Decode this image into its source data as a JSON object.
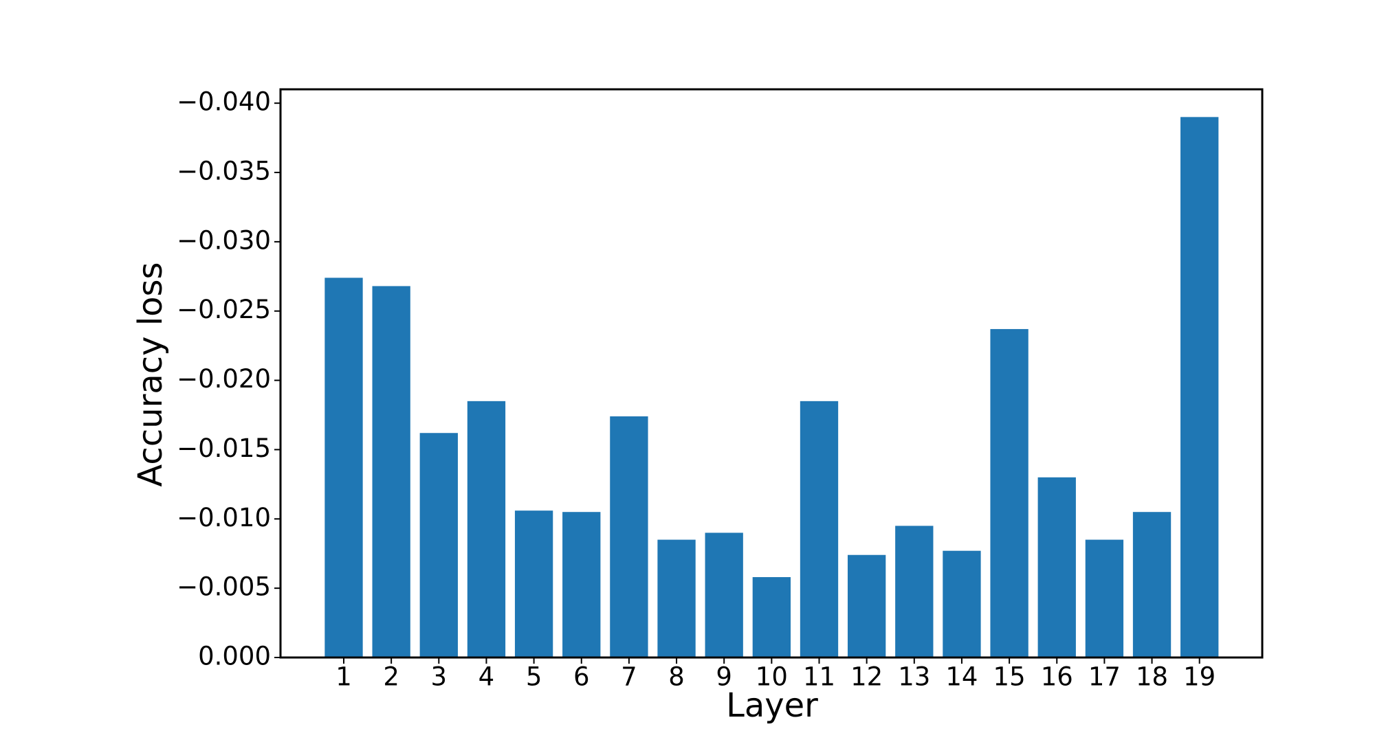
{
  "chart_data": {
    "type": "bar",
    "xlabel": "Layer",
    "ylabel": "Accuracy loss",
    "categories": [
      "1",
      "2",
      "3",
      "4",
      "5",
      "6",
      "7",
      "8",
      "9",
      "10",
      "11",
      "12",
      "13",
      "14",
      "15",
      "16",
      "17",
      "18",
      "19"
    ],
    "values": [
      -0.0274,
      -0.0268,
      -0.0162,
      -0.0185,
      -0.0106,
      -0.0105,
      -0.0174,
      -0.0085,
      -0.009,
      -0.0058,
      -0.0185,
      -0.0074,
      -0.0095,
      -0.0077,
      -0.0237,
      -0.013,
      -0.0085,
      -0.0105,
      -0.039
    ],
    "color": "#1f77b4",
    "ylim": [
      0,
      -0.041
    ],
    "yticks": [
      {
        "value": 0,
        "label": "0.000"
      },
      {
        "value": -0.005,
        "label": "−0.005"
      },
      {
        "value": -0.01,
        "label": "−0.010"
      },
      {
        "value": -0.015,
        "label": "−0.015"
      },
      {
        "value": -0.02,
        "label": "−0.020"
      },
      {
        "value": -0.025,
        "label": "−0.025"
      },
      {
        "value": -0.03,
        "label": "−0.030"
      },
      {
        "value": -0.035,
        "label": "−0.035"
      },
      {
        "value": -0.04,
        "label": "−0.040"
      }
    ],
    "grid": false
  }
}
